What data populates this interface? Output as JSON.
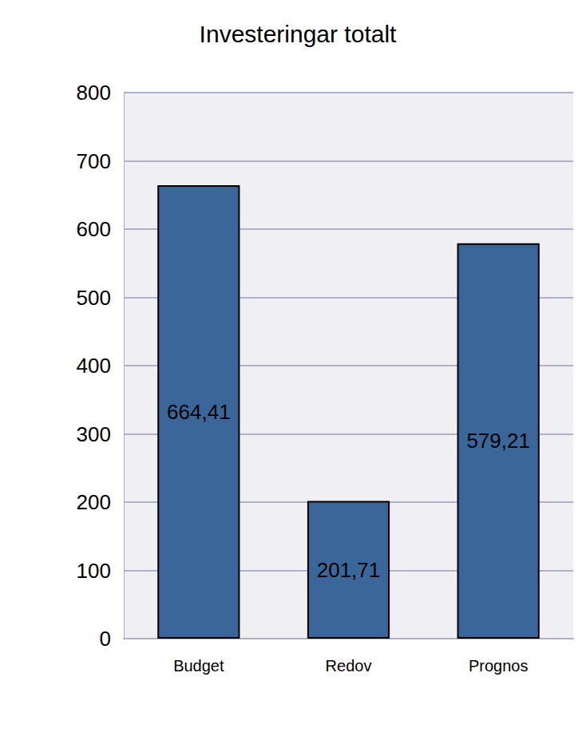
{
  "chart_data": {
    "type": "bar",
    "title": "Investeringar totalt",
    "categories": [
      "Budget",
      "Redov",
      "Prognos"
    ],
    "values": [
      664.41,
      201.71,
      579.21
    ],
    "value_labels": [
      "664,41",
      "201,71",
      "579,21"
    ],
    "color": "#3b6699",
    "ylim": [
      0,
      800
    ],
    "yticks": [
      0,
      100,
      200,
      300,
      400,
      500,
      600,
      700,
      800
    ],
    "grid": true,
    "data_labels": true
  }
}
